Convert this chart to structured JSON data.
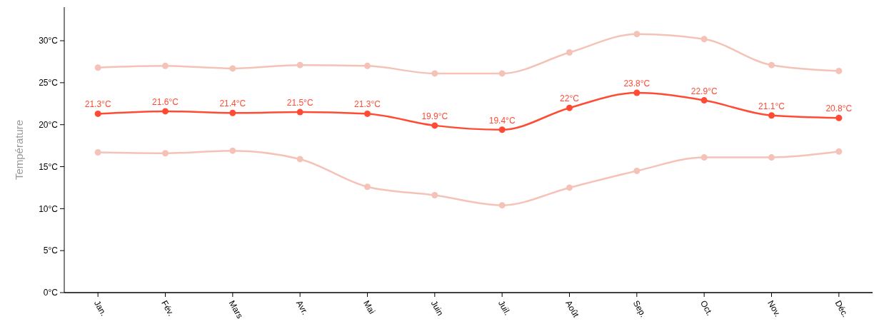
{
  "chart_data": {
    "type": "line",
    "ylabel": "Température",
    "categories": [
      "Jan.",
      "Fév.",
      "Mars",
      "Avr.",
      "Mai",
      "Juin",
      "Juil.",
      "Août",
      "Sep.",
      "Oct.",
      "Nov.",
      "Déc."
    ],
    "series": [
      {
        "color": "#f5c2b8",
        "values": [
          26.8,
          27.0,
          26.7,
          27.1,
          27.0,
          26.1,
          26.1,
          28.6,
          30.8,
          30.2,
          27.1,
          26.4
        ]
      },
      {
        "color": "#f5c2b8",
        "values": [
          16.7,
          16.6,
          16.9,
          15.9,
          12.6,
          11.6,
          10.4,
          12.5,
          14.5,
          16.1,
          16.1,
          16.8
        ]
      },
      {
        "color": "#ff4b33",
        "values": [
          21.3,
          21.6,
          21.4,
          21.5,
          21.3,
          19.9,
          19.4,
          22,
          23.8,
          22.9,
          21.1,
          20.8
        ],
        "value_labels": [
          "21.3°C",
          "21.6°C",
          "21.4°C",
          "21.5°C",
          "21.3°C",
          "19.9°C",
          "19.4°C",
          "22°C",
          "23.8°C",
          "22.9°C",
          "21.1°C",
          "20.8°C"
        ]
      }
    ],
    "ylim": [
      0,
      34
    ],
    "yticks": [
      {
        "value": 0,
        "label": "0°C"
      },
      {
        "value": 5,
        "label": "5°C"
      },
      {
        "value": 10,
        "label": "10°C"
      },
      {
        "value": 15,
        "label": "15°C"
      },
      {
        "value": 20,
        "label": "20°C"
      },
      {
        "value": 25,
        "label": "25°C"
      },
      {
        "value": 30,
        "label": "30°C"
      }
    ],
    "marker": "circle",
    "line_style": "solid"
  }
}
